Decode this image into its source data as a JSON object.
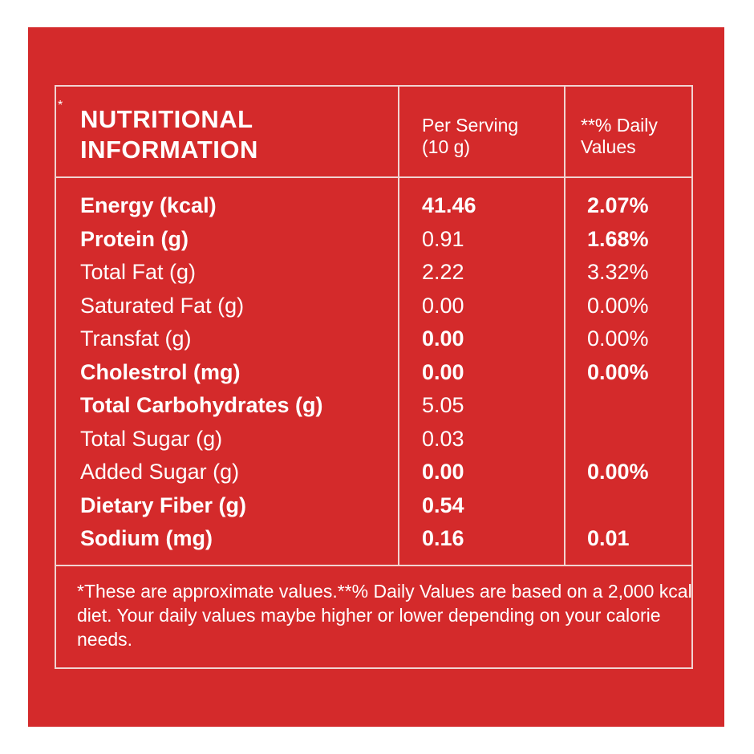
{
  "panel": {
    "background": "#d42a2b",
    "text_color": "#ffffff",
    "border_color": "#f1d3d1"
  },
  "header": {
    "asterisk": "*",
    "title_line1": "NUTRITIONAL",
    "title_line2": "INFORMATION",
    "serving_line1": "Per Serving",
    "serving_line2": "(10 g)",
    "dv_line1": "**% Daily",
    "dv_line2": "Values"
  },
  "rows": [
    {
      "label": "Energy (kcal)",
      "serving": "41.46",
      "dv": "2.07%",
      "label_bold": true,
      "serving_bold": true,
      "dv_bold": true
    },
    {
      "label": "Protein (g)",
      "serving": "0.91",
      "dv": "1.68%",
      "label_bold": true,
      "serving_bold": false,
      "dv_bold": true
    },
    {
      "label": "Total Fat (g)",
      "serving": "2.22",
      "dv": "3.32%",
      "label_bold": false,
      "serving_bold": false,
      "dv_bold": false
    },
    {
      "label": "Saturated Fat (g)",
      "serving": "0.00",
      "dv": "0.00%",
      "label_bold": false,
      "serving_bold": false,
      "dv_bold": false
    },
    {
      "label": "Transfat (g)",
      "serving": "0.00",
      "dv": "0.00%",
      "label_bold": false,
      "serving_bold": true,
      "dv_bold": false
    },
    {
      "label": "Cholestrol (mg)",
      "serving": "0.00",
      "dv": "0.00%",
      "label_bold": true,
      "serving_bold": true,
      "dv_bold": true
    },
    {
      "label": "Total Carbohydrates (g)",
      "serving": "5.05",
      "dv": "",
      "label_bold": true,
      "serving_bold": false,
      "dv_bold": false
    },
    {
      "label": "Total Sugar (g)",
      "serving": "0.03",
      "dv": "",
      "label_bold": false,
      "serving_bold": false,
      "dv_bold": false
    },
    {
      "label": "Added Sugar (g)",
      "serving": "0.00",
      "dv": "0.00%",
      "label_bold": false,
      "serving_bold": true,
      "dv_bold": true
    },
    {
      "label": "Dietary Fiber (g)",
      "serving": "0.54",
      "dv": "",
      "label_bold": true,
      "serving_bold": true,
      "dv_bold": false
    },
    {
      "label": "Sodium (mg)",
      "serving": "0.16",
      "dv": "0.01",
      "label_bold": true,
      "serving_bold": true,
      "dv_bold": true
    }
  ],
  "footnote": "*These are approximate values.**% Daily Values are based on a 2,000 kcal diet. Your daily values maybe higher or lower depending on your calorie needs."
}
